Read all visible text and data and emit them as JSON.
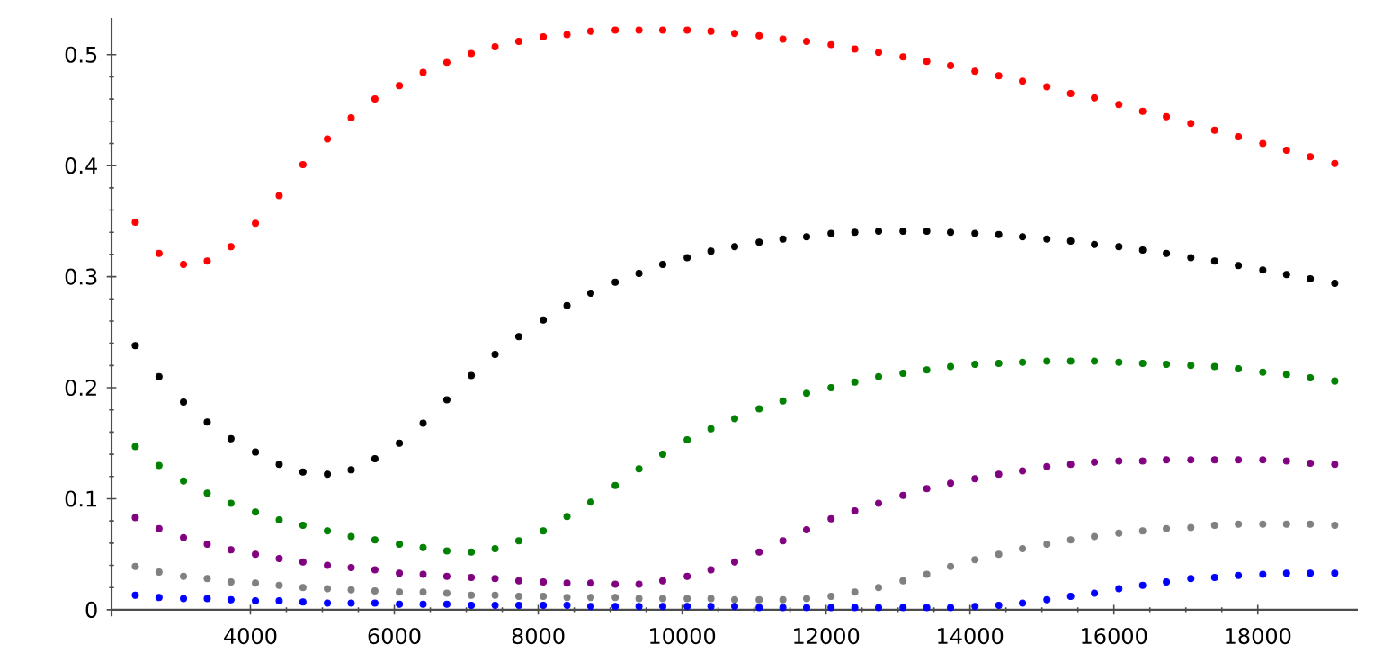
{
  "chart_data": {
    "type": "scatter",
    "marker": "circle",
    "x": [
      2400,
      2730,
      3070,
      3400,
      3730,
      4070,
      4400,
      4730,
      5070,
      5400,
      5730,
      6070,
      6400,
      6730,
      7070,
      7400,
      7730,
      8070,
      8400,
      8730,
      9070,
      9400,
      9730,
      10070,
      10400,
      10730,
      11070,
      11400,
      11730,
      12070,
      12400,
      12730,
      13070,
      13400,
      13730,
      14070,
      14400,
      14730,
      15070,
      15400,
      15730,
      16070,
      16400,
      16730,
      17070,
      17400,
      17730,
      18070,
      18400,
      18730,
      19070
    ],
    "series": [
      {
        "color": "#ff0000",
        "values": [
          0.349,
          0.321,
          0.311,
          0.314,
          0.327,
          0.348,
          0.373,
          0.401,
          0.424,
          0.443,
          0.46,
          0.472,
          0.484,
          0.493,
          0.501,
          0.507,
          0.512,
          0.516,
          0.518,
          0.521,
          0.522,
          0.522,
          0.522,
          0.522,
          0.521,
          0.519,
          0.517,
          0.514,
          0.512,
          0.509,
          0.505,
          0.502,
          0.498,
          0.494,
          0.49,
          0.485,
          0.481,
          0.476,
          0.471,
          0.465,
          0.461,
          0.455,
          0.449,
          0.444,
          0.438,
          0.432,
          0.426,
          0.42,
          0.414,
          0.408,
          0.402
        ]
      },
      {
        "color": "#000000",
        "values": [
          0.238,
          0.21,
          0.187,
          0.169,
          0.154,
          0.142,
          0.131,
          0.124,
          0.122,
          0.126,
          0.136,
          0.15,
          0.168,
          0.189,
          0.211,
          0.23,
          0.246,
          0.261,
          0.274,
          0.285,
          0.295,
          0.303,
          0.311,
          0.317,
          0.323,
          0.327,
          0.331,
          0.334,
          0.336,
          0.339,
          0.34,
          0.341,
          0.341,
          0.341,
          0.34,
          0.339,
          0.338,
          0.336,
          0.334,
          0.332,
          0.329,
          0.327,
          0.324,
          0.321,
          0.317,
          0.314,
          0.31,
          0.306,
          0.302,
          0.298,
          0.294
        ]
      },
      {
        "color": "#008000",
        "values": [
          0.147,
          0.13,
          0.116,
          0.105,
          0.096,
          0.088,
          0.081,
          0.076,
          0.071,
          0.066,
          0.063,
          0.059,
          0.056,
          0.053,
          0.052,
          0.055,
          0.062,
          0.071,
          0.084,
          0.097,
          0.112,
          0.127,
          0.14,
          0.153,
          0.163,
          0.172,
          0.181,
          0.188,
          0.195,
          0.2,
          0.205,
          0.21,
          0.213,
          0.216,
          0.219,
          0.221,
          0.222,
          0.223,
          0.224,
          0.224,
          0.224,
          0.223,
          0.222,
          0.221,
          0.22,
          0.219,
          0.217,
          0.214,
          0.212,
          0.209,
          0.206
        ]
      },
      {
        "color": "#800080",
        "values": [
          0.083,
          0.073,
          0.065,
          0.059,
          0.054,
          0.05,
          0.046,
          0.043,
          0.04,
          0.038,
          0.036,
          0.033,
          0.032,
          0.03,
          0.029,
          0.028,
          0.026,
          0.025,
          0.024,
          0.024,
          0.023,
          0.023,
          0.026,
          0.03,
          0.036,
          0.043,
          0.052,
          0.062,
          0.072,
          0.082,
          0.089,
          0.096,
          0.103,
          0.109,
          0.114,
          0.118,
          0.122,
          0.125,
          0.129,
          0.131,
          0.133,
          0.134,
          0.134,
          0.135,
          0.135,
          0.135,
          0.135,
          0.135,
          0.134,
          0.132,
          0.131
        ]
      },
      {
        "color": "#808080",
        "values": [
          0.039,
          0.034,
          0.03,
          0.028,
          0.025,
          0.024,
          0.022,
          0.02,
          0.019,
          0.018,
          0.017,
          0.016,
          0.016,
          0.015,
          0.013,
          0.013,
          0.012,
          0.012,
          0.011,
          0.011,
          0.011,
          0.01,
          0.01,
          0.01,
          0.01,
          0.009,
          0.009,
          0.009,
          0.01,
          0.012,
          0.016,
          0.02,
          0.026,
          0.032,
          0.039,
          0.045,
          0.05,
          0.055,
          0.059,
          0.063,
          0.066,
          0.069,
          0.071,
          0.073,
          0.074,
          0.076,
          0.077,
          0.077,
          0.077,
          0.077,
          0.076
        ]
      },
      {
        "color": "#0000ff",
        "values": [
          0.013,
          0.011,
          0.01,
          0.01,
          0.009,
          0.008,
          0.008,
          0.007,
          0.006,
          0.006,
          0.006,
          0.005,
          0.005,
          0.005,
          0.004,
          0.004,
          0.004,
          0.004,
          0.004,
          0.003,
          0.003,
          0.003,
          0.003,
          0.003,
          0.003,
          0.003,
          0.002,
          0.002,
          0.002,
          0.002,
          0.002,
          0.002,
          0.002,
          0.002,
          0.002,
          0.003,
          0.004,
          0.006,
          0.009,
          0.012,
          0.015,
          0.019,
          0.022,
          0.025,
          0.028,
          0.029,
          0.031,
          0.032,
          0.033,
          0.033,
          0.033
        ]
      }
    ],
    "xlim": [
      2070,
      19390
    ],
    "ylim": [
      -0.006,
      0.533
    ],
    "xticks": [
      4000,
      6000,
      8000,
      10000,
      12000,
      14000,
      16000,
      18000
    ],
    "yticks": [
      0,
      0.1,
      0.2,
      0.3,
      0.4,
      0.5
    ]
  }
}
